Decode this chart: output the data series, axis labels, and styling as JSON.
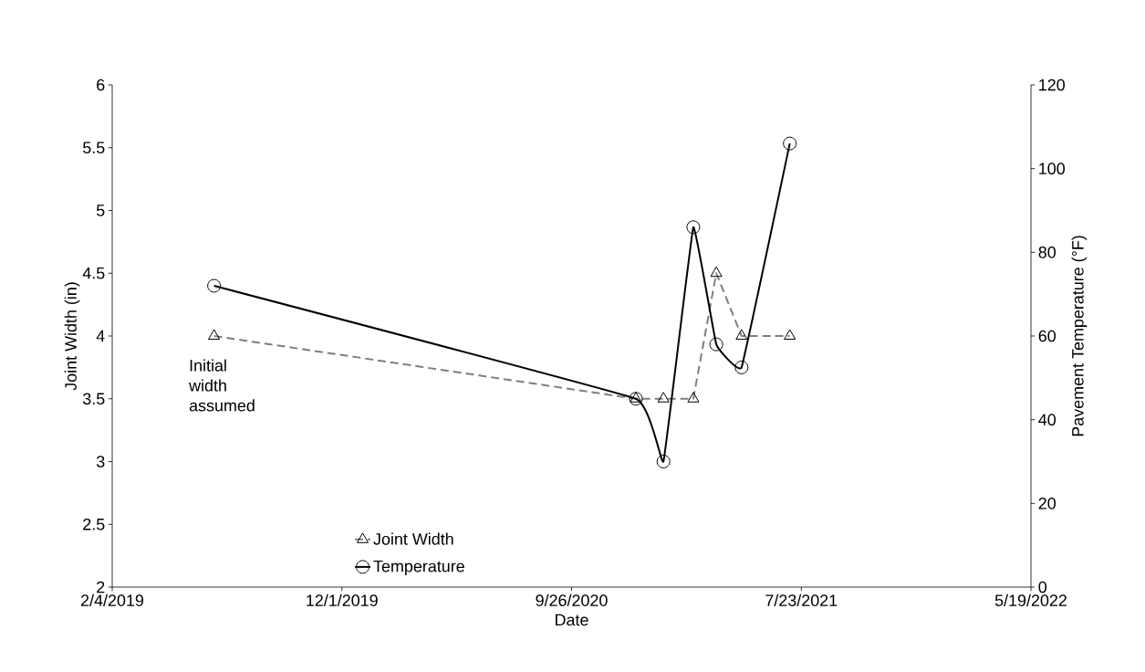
{
  "chart_data": {
    "type": "line",
    "x": [
      "2019-06-17",
      "2020-12-19",
      "2021-01-24",
      "2021-03-04",
      "2021-04-03",
      "2021-05-06",
      "2021-07-08"
    ],
    "xlim": [
      "2019-02-04",
      "2022-05-19"
    ],
    "xticks": [
      {
        "value": "2019-02-04",
        "label": "2/4/2019"
      },
      {
        "value": "2019-12-01",
        "label": "12/1/2019"
      },
      {
        "value": "2020-09-26",
        "label": "9/26/2020"
      },
      {
        "value": "2021-07-23",
        "label": "7/23/2021"
      },
      {
        "value": "2022-05-19",
        "label": "5/19/2022"
      }
    ],
    "ylim": [
      2,
      6
    ],
    "yticks": [
      2,
      2.5,
      3,
      3.5,
      4,
      4.5,
      5,
      5.5,
      6
    ],
    "y2lim": [
      0,
      120
    ],
    "y2ticks": [
      0,
      20,
      40,
      60,
      80,
      100,
      120
    ],
    "xlabel": "Date",
    "ylabel": "Joint Width (in)",
    "y2label": "Pavement Temperature (°F)",
    "legend": "bottom left",
    "annotations": [
      "Initial width assumed"
    ],
    "series": [
      {
        "name": "Joint Width",
        "color": "#7f7f7f",
        "marker": "triangle",
        "line_style": "dashed",
        "values": [
          4,
          3.5,
          3.5,
          3.5,
          4.5,
          4,
          4
        ]
      },
      {
        "name": "Temperature",
        "color": "#000000",
        "marker": "circle",
        "line_style": "solid",
        "axis": "y2",
        "values": [
          72,
          45,
          30,
          86,
          58,
          52.5,
          106
        ]
      }
    ]
  }
}
